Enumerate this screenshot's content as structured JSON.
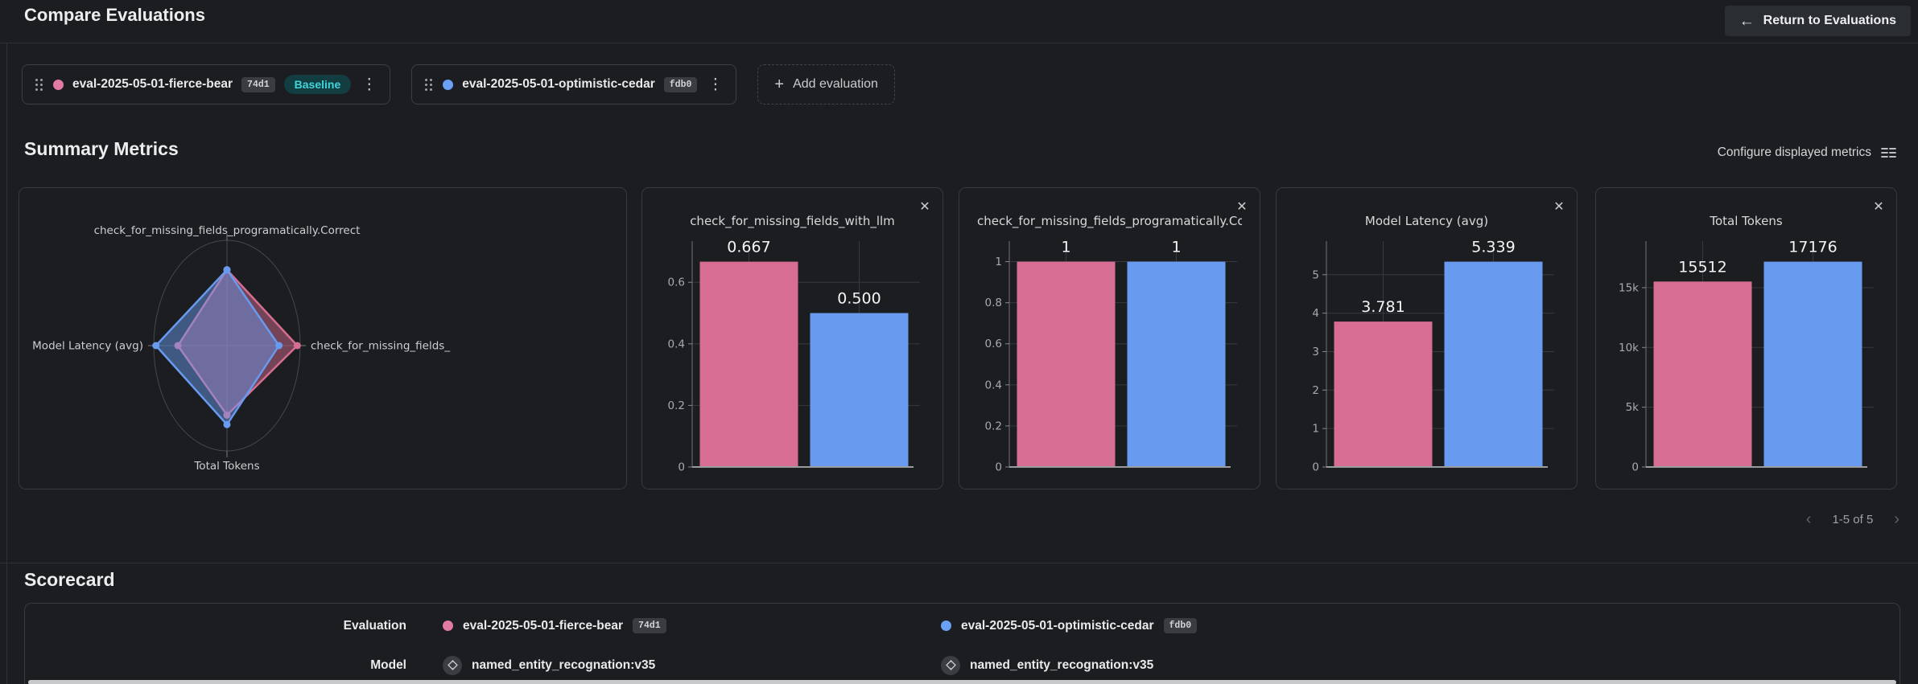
{
  "header": {
    "title": "Compare Evaluations",
    "return_label": "Return to Evaluations"
  },
  "icons": {
    "return_arrow": "←",
    "plus": "+",
    "kebab": "⋮",
    "close": "✕",
    "prev": "‹",
    "next": "›"
  },
  "evaluations": [
    {
      "name": "eval-2025-05-01-fierce-bear",
      "hash": "74d1",
      "badge": "Baseline",
      "color": "#e27ba1"
    },
    {
      "name": "eval-2025-05-01-optimistic-cedar",
      "hash": "fdb0",
      "badge": "",
      "color": "#6ba0f4"
    }
  ],
  "add_evaluation_label": "Add evaluation",
  "summary": {
    "title": "Summary Metrics",
    "configure_label": "Configure displayed metrics",
    "pagination": "1-5 of 5"
  },
  "series_colors": [
    "#d76d92",
    "#689af0"
  ],
  "chart_data": [
    {
      "type": "radar",
      "axes": [
        {
          "label": "check_for_missing_fields_programatically.Correct",
          "position": "top"
        },
        {
          "label": "check_for_missing_fields_",
          "position": "right"
        },
        {
          "label": "Total Tokens",
          "position": "bottom"
        },
        {
          "label": "Model Latency (avg)",
          "position": "left"
        }
      ],
      "series": [
        {
          "name": "eval-2025-05-01-fierce-bear",
          "color": "#d76d92",
          "fractions": [
            0.72,
            0.96,
            0.66,
            0.67
          ]
        },
        {
          "name": "eval-2025-05-01-optimistic-cedar",
          "color": "#689af0",
          "fractions": [
            0.72,
            0.71,
            0.75,
            0.97
          ]
        }
      ]
    },
    {
      "type": "bar",
      "title": "check_for_missing_fields_with_llm",
      "categories": [
        "eval-2025-05-01-fierce-bear",
        "eval-2025-05-01-optimistic-cedar"
      ],
      "values": [
        0.667,
        0.5
      ],
      "value_labels": [
        "0.667",
        "0.500"
      ],
      "yticks": [
        0,
        0.2,
        0.4,
        0.6
      ],
      "ytick_labels": [
        "0",
        "0.2",
        "0.4",
        "0.6"
      ]
    },
    {
      "type": "bar",
      "title": "check_for_missing_fields_programatically.Correct",
      "categories": [
        "eval-2025-05-01-fierce-bear",
        "eval-2025-05-01-optimistic-cedar"
      ],
      "values": [
        1,
        1
      ],
      "value_labels": [
        "1",
        "1"
      ],
      "yticks": [
        0,
        0.2,
        0.4,
        0.6,
        0.8,
        1
      ],
      "ytick_labels": [
        "0",
        "0.2",
        "0.4",
        "0.6",
        "0.8",
        "1"
      ]
    },
    {
      "type": "bar",
      "title": "Model Latency (avg)",
      "categories": [
        "eval-2025-05-01-fierce-bear",
        "eval-2025-05-01-optimistic-cedar"
      ],
      "values": [
        3.781,
        5.339
      ],
      "value_labels": [
        "3.781",
        "5.339"
      ],
      "yticks": [
        0,
        1,
        2,
        3,
        4,
        5
      ],
      "ytick_labels": [
        "0",
        "1",
        "2",
        "3",
        "4",
        "5"
      ]
    },
    {
      "type": "bar",
      "title": "Total Tokens",
      "categories": [
        "eval-2025-05-01-fierce-bear",
        "eval-2025-05-01-optimistic-cedar"
      ],
      "values": [
        15512,
        17176
      ],
      "value_labels": [
        "15512",
        "17176"
      ],
      "yticks": [
        0,
        5000,
        10000,
        15000
      ],
      "ytick_labels": [
        "0",
        "5k",
        "10k",
        "15k"
      ]
    }
  ],
  "scorecard": {
    "title": "Scorecard",
    "row_labels": {
      "evaluation": "Evaluation",
      "model": "Model"
    },
    "model_name": "named_entity_recognation:v35"
  }
}
